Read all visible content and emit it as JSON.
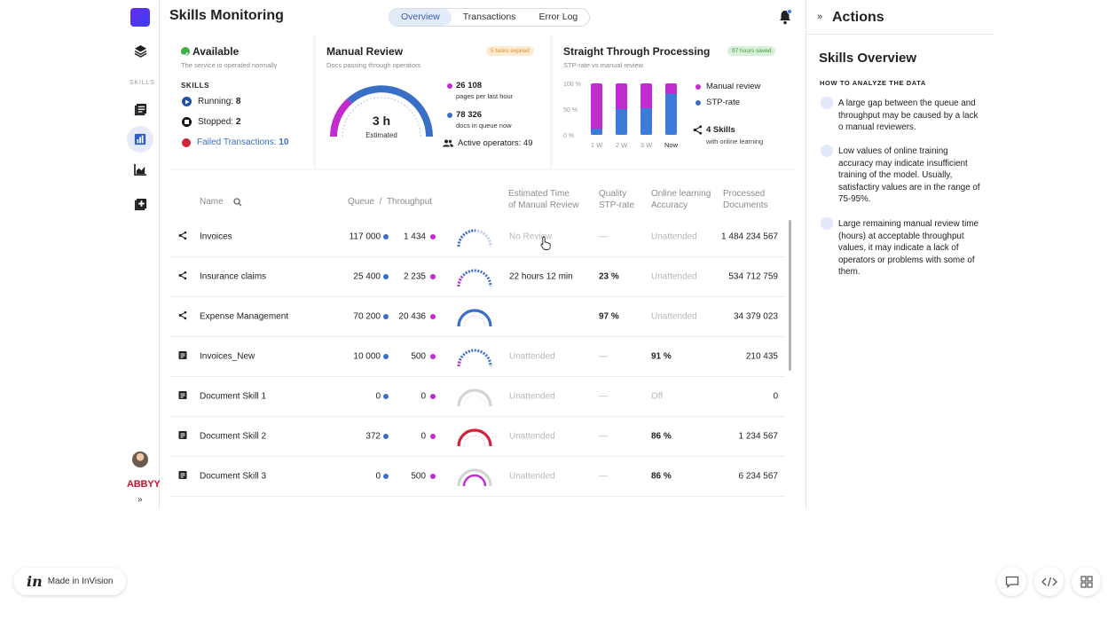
{
  "app": {
    "title": "Skills Monitoring"
  },
  "tabs": [
    {
      "label": "Overview",
      "active": true
    },
    {
      "label": "Transactions",
      "active": false
    },
    {
      "label": "Error Log",
      "active": false
    }
  ],
  "sidebar": {
    "section_label": "SKILLS",
    "brand": "ABBYY"
  },
  "status_card": {
    "title": "Available",
    "subtitle": "The service is operated normally",
    "section_label": "SKILLS",
    "running_label": "Running:",
    "running_value": "8",
    "stopped_label": "Stopped:",
    "stopped_value": "2",
    "failed_label": "Failed Transactions:",
    "failed_value": "10"
  },
  "manual_review_card": {
    "title": "Manual Review",
    "subtitle": "Docs passing through operators",
    "badge": "5 tasks expired",
    "gauge_value": "3 h",
    "gauge_label": "Estimated",
    "pages_value": "26 108",
    "pages_label": "pages per last hour",
    "docs_value": "78 326",
    "docs_label": "docs in queue now",
    "operators_label": "Active operators: 49"
  },
  "stp_card": {
    "title": "Straight Through Processing",
    "subtitle": "STP-rate vs manual review",
    "badge": "97 hours saved",
    "y_ticks": [
      "100 %",
      "50 %",
      "0 %"
    ],
    "legend_manual": "Manual review",
    "legend_stp": "STP-rate",
    "skills_value": "4 Skills",
    "skills_label": "with online learning"
  },
  "chart_data": {
    "type": "bar",
    "categories": [
      "1 W",
      "2 W",
      "3 W",
      "Now"
    ],
    "series": [
      {
        "name": "Manual review",
        "values": [
          100,
          100,
          100,
          100
        ]
      },
      {
        "name": "STP-rate",
        "values": [
          12,
          50,
          52,
          80
        ]
      }
    ],
    "ylim": [
      0,
      100
    ],
    "y_ticks": [
      "100 %",
      "50 %",
      "0 %"
    ]
  },
  "table": {
    "headers": {
      "name": "Name",
      "queue": "Queue",
      "sep": "/",
      "throughput": "Throughput",
      "est_time_1": "Estimated Time",
      "est_time_2": "of Manual Review",
      "quality_1": "Quality",
      "quality_2": "STP-rate",
      "online_1": "Online learning",
      "online_2": "Accuracy",
      "processed_1": "Processed",
      "processed_2": "Documents"
    },
    "rows": [
      {
        "name": "Invoices",
        "queue": "117 000",
        "throughput": "1 434",
        "est": "No Review",
        "stp": "—",
        "accuracy": "Unattended",
        "processed": "1 484 234 567"
      },
      {
        "name": "Insurance claims",
        "queue": "25 400",
        "throughput": "2 235",
        "est": "22 hours 12 min",
        "stp": "23 %",
        "accuracy": "Unattended",
        "processed": "534 712 759"
      },
      {
        "name": "Expense Management",
        "queue": "70 200",
        "throughput": "20 436",
        "est": "",
        "stp": "97 %",
        "accuracy": "Unattended",
        "processed": "34 379 023"
      },
      {
        "name": "Invoices_New",
        "queue": "10 000",
        "throughput": "500",
        "est": "Unattended",
        "stp": "—",
        "accuracy": "91 %",
        "processed": "210 435"
      },
      {
        "name": "Document Skill 1",
        "queue": "0",
        "throughput": "0",
        "est": "Unattended",
        "stp": "—",
        "accuracy": "Off",
        "processed": "0"
      },
      {
        "name": "Document Skill 2",
        "queue": "372",
        "throughput": "0",
        "est": "Unattended",
        "stp": "—",
        "accuracy": "86 %",
        "processed": "1 234 567"
      },
      {
        "name": "Document Skill 3",
        "queue": "0",
        "throughput": "500",
        "est": "Unattended",
        "stp": "—",
        "accuracy": "86 %",
        "processed": "6 234 567"
      }
    ]
  },
  "actions_panel": {
    "title": "Actions",
    "overview_title": "Skills Overview",
    "how_label": "HOW TO ANALYZE THE DATA",
    "tips": [
      "A large gap between the queue and throughput may be caused by a lack o manual reviewers.",
      "Low values of online training accuracy may indicate insufficient training of the model. Usually, satisfactiry values are in the range of 75-95%.",
      "Large remaining manual review time (hours) at acceptable throughput values, it may indicate a lack of operators or problems with some of them."
    ]
  },
  "footer": {
    "invision_label": "Made in InVision"
  },
  "colors": {
    "accent_blue": "#3a7bdc",
    "magenta": "#c12bd0",
    "red": "#d2233b",
    "green": "#3fae49"
  }
}
